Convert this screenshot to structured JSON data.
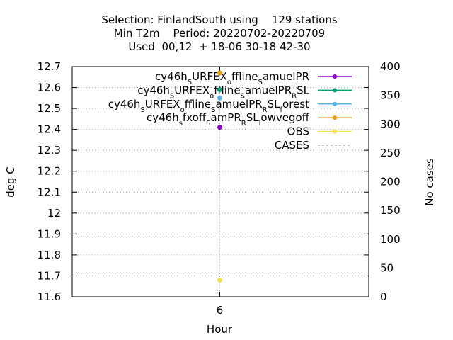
{
  "chart_data": {
    "type": "scatter",
    "title_lines": [
      "Selection: FinlandSouth using    129 stations",
      "Min T2m    Period: 20220702-20220709",
      "Used  00,12  + 18-06 30-18 42-30"
    ],
    "xlabel": "Hour",
    "ylabel": "deg C",
    "y2label": "No cases",
    "x_ticks": [
      "6"
    ],
    "ylim": [
      11.6,
      12.7
    ],
    "y_ticks": [
      "11.6",
      "11.7",
      "11.8",
      "11.9",
      "12",
      "12.1",
      "12.2",
      "12.3",
      "12.4",
      "12.5",
      "12.6",
      "12.7"
    ],
    "y2lim": [
      0,
      400
    ],
    "y2_ticks": [
      "0",
      "50",
      "100",
      "150",
      "200",
      "250",
      "300",
      "350",
      "400"
    ],
    "grid": true,
    "legend_position": "top-right",
    "series": [
      {
        "legend": [
          [
            "cy46h",
            "S",
            "URFEX",
            "o",
            "ffline",
            "S",
            "amuelPR"
          ]
        ],
        "color": "#9400d3",
        "x": 6,
        "y": 12.41
      },
      {
        "legend": [
          [
            "cy46h",
            "S",
            "URFEX",
            "o",
            "ffline",
            "S",
            "amuelPR",
            "R",
            "SL"
          ]
        ],
        "color": "#009e73",
        "x": 6,
        "y": 12.59
      },
      {
        "legend": [
          [
            "cy46h",
            "S",
            "URFEX",
            "o",
            "ffline",
            "S",
            "amuelPR",
            "R",
            "SL",
            "f",
            "orest"
          ]
        ],
        "color": "#56b4e9",
        "x": 6,
        "y": 12.55
      },
      {
        "legend": [
          [
            "cy46h",
            "s",
            "fxoff",
            "S",
            "amPR",
            "R",
            "SL",
            "l",
            "owvegoff"
          ]
        ],
        "color": "#e69f00",
        "x": 6,
        "y": 12.67
      },
      {
        "legend": [
          [
            "OBS"
          ]
        ],
        "color": "#f0e442",
        "x": 6,
        "y": 11.68
      }
    ],
    "cases": {
      "legend": "CASES",
      "color": "#a0a0a0",
      "x": 6,
      "value": 129
    }
  }
}
